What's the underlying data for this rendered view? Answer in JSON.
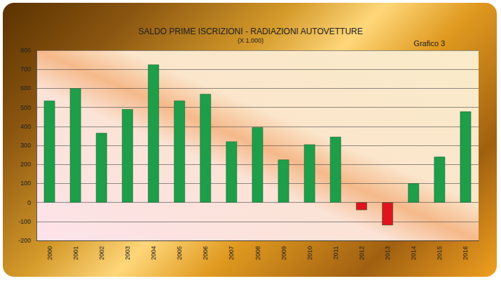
{
  "chart_data": {
    "type": "bar",
    "title": "SALDO PRIME ISCRIZIONI - RADIAZIONI AUTOVETTURE",
    "subtitle": "(X 1.000)",
    "annotation": "Grafico 3",
    "categories": [
      "2000",
      "2001",
      "2002",
      "2003",
      "2004",
      "2005",
      "2006",
      "2007",
      "2008",
      "2009",
      "2010",
      "2011",
      "2012",
      "2013",
      "2014",
      "2015",
      "2016"
    ],
    "values": [
      535,
      600,
      365,
      490,
      725,
      535,
      570,
      320,
      395,
      225,
      305,
      345,
      -40,
      -120,
      100,
      240,
      478
    ],
    "colors": [
      "#1f9e4a",
      "#1f9e4a",
      "#1f9e4a",
      "#1f9e4a",
      "#1f9e4a",
      "#1f9e4a",
      "#1f9e4a",
      "#1f9e4a",
      "#1f9e4a",
      "#1f9e4a",
      "#1f9e4a",
      "#1f9e4a",
      "#e0141e",
      "#e0141e",
      "#1f9e4a",
      "#1f9e4a",
      "#1f9e4a"
    ],
    "ylim": [
      -200,
      800
    ],
    "yticks": [
      -200,
      -100,
      0,
      100,
      200,
      300,
      400,
      500,
      600,
      700,
      800
    ],
    "grid": true
  }
}
